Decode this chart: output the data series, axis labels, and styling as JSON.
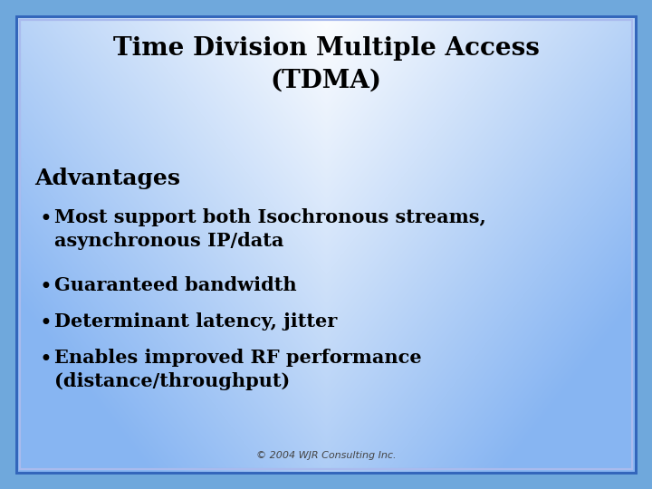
{
  "title_line1": "Time Division Multiple Access",
  "title_line2": "(TDMA)",
  "subtitle": "Advantages",
  "bullets": [
    "Most support both Isochronous streams,\nasynchronous IP/data",
    "Guaranteed bandwidth",
    "Determinant latency, jitter",
    "Enables improved RF performance\n(distance/throughput)"
  ],
  "footer": "© 2004 WJR Consulting Inc.",
  "bg_outer_color": "#6fa8dc",
  "title_color": "#000000",
  "subtitle_color": "#000000",
  "bullet_color": "#000000",
  "footer_color": "#444444",
  "title_fontsize": 20,
  "subtitle_fontsize": 18,
  "bullet_fontsize": 15,
  "footer_fontsize": 8,
  "border_color": "#3366bb",
  "border_color2": "#aabbee"
}
